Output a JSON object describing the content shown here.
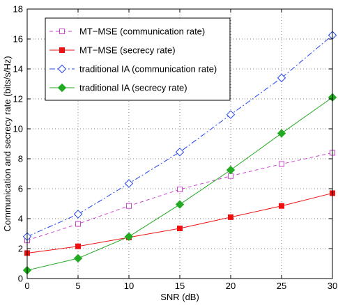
{
  "chart_data": {
    "type": "line",
    "title": "",
    "xlabel": "SNR (dB)",
    "ylabel": "Communication and secrecy rate (bits/s/Hz)",
    "x": [
      0,
      5,
      10,
      15,
      20,
      25,
      30
    ],
    "xlim": [
      0,
      30
    ],
    "ylim": [
      0,
      18
    ],
    "xticks": [
      "0",
      "5",
      "10",
      "15",
      "20",
      "25",
      "30"
    ],
    "yticks": [
      "0",
      "2",
      "4",
      "6",
      "8",
      "10",
      "12",
      "14",
      "16",
      "18"
    ],
    "grid": true,
    "legend_position": "top-left",
    "series": [
      {
        "name": "MT−MSE (communication rate)",
        "values": [
          2.55,
          3.65,
          4.85,
          5.95,
          6.85,
          7.65,
          8.4
        ],
        "color": "#cc44cc",
        "line_style": "dash",
        "marker": "square-open"
      },
      {
        "name": "MT−MSE (secrecy rate)",
        "values": [
          1.7,
          2.15,
          2.75,
          3.35,
          4.1,
          4.85,
          5.7
        ],
        "color": "#ee1111",
        "line_style": "solid",
        "marker": "square-filled"
      },
      {
        "name": "traditional IA (communication rate)",
        "values": [
          2.8,
          4.3,
          6.35,
          8.45,
          10.95,
          13.4,
          16.25
        ],
        "color": "#2244ee",
        "line_style": "dashdot",
        "marker": "diamond-open"
      },
      {
        "name": "traditional IA (secrecy rate)",
        "values": [
          0.55,
          1.35,
          2.8,
          4.95,
          7.25,
          9.7,
          12.1
        ],
        "color": "#22aa22",
        "line_style": "solid",
        "marker": "diamond-filled"
      }
    ]
  }
}
